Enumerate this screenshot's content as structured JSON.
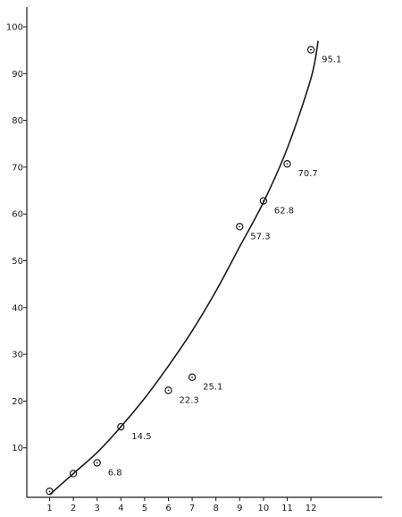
{
  "chart_data": {
    "type": "scatter",
    "title": "",
    "xlabel": "",
    "ylabel": "",
    "xlim": [
      0.5,
      14
    ],
    "ylim": [
      0,
      102
    ],
    "x_ticks": [
      1,
      2,
      3,
      4,
      5,
      6,
      7,
      8,
      9,
      10,
      11,
      12
    ],
    "y_ticks": [
      10,
      20,
      30,
      40,
      50,
      60,
      70,
      80,
      90,
      100
    ],
    "grid": false,
    "legend": "none",
    "points": [
      {
        "x": 1,
        "y": 0.7,
        "label": ""
      },
      {
        "x": 2,
        "y": 4.5,
        "label": ""
      },
      {
        "x": 3,
        "y": 6.8,
        "label": "6.8"
      },
      {
        "x": 4,
        "y": 14.5,
        "label": "14.5"
      },
      {
        "x": 6,
        "y": 22.3,
        "label": "22.3"
      },
      {
        "x": 7,
        "y": 25.1,
        "label": "25.1"
      },
      {
        "x": 9,
        "y": 57.3,
        "label": "57.3"
      },
      {
        "x": 10,
        "y": 62.8,
        "label": "62.8"
      },
      {
        "x": 11,
        "y": 70.7,
        "label": "70.7"
      },
      {
        "x": 12,
        "y": 95.1,
        "label": "95.1"
      }
    ],
    "fit_curve": {
      "x": [
        1,
        2,
        3,
        4,
        5,
        6,
        7,
        8,
        9,
        10,
        11,
        12,
        12.3
      ],
      "y": [
        0,
        4.5,
        9.0,
        14.5,
        20.6,
        27.5,
        35.0,
        43.5,
        53.0,
        62.5,
        74.0,
        89.0,
        97.0
      ]
    }
  }
}
